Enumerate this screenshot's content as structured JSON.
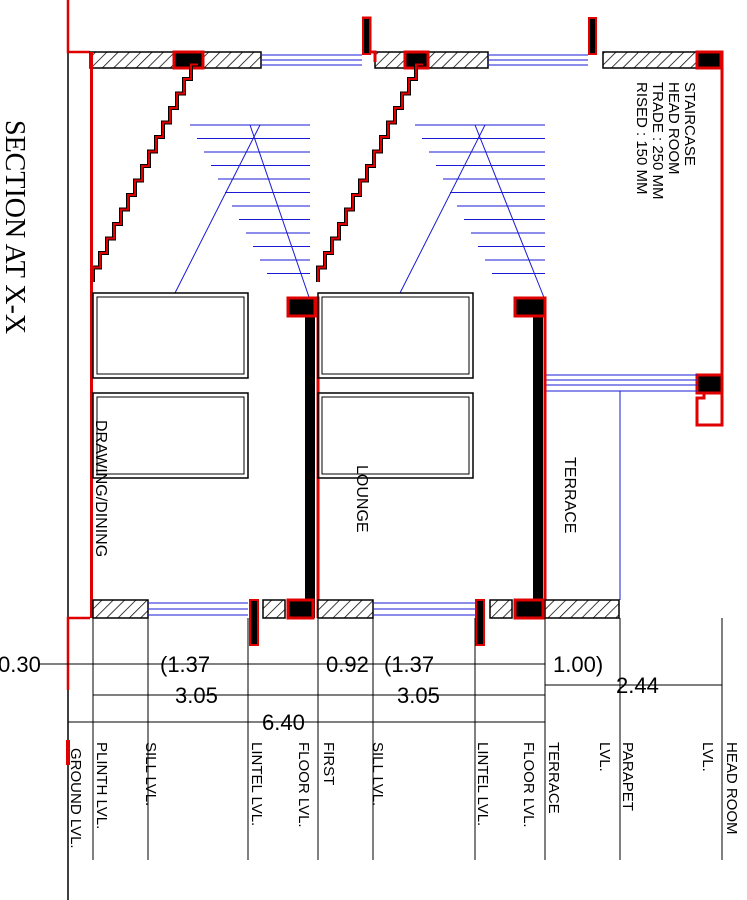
{
  "title": "SECTION AT X-X",
  "rooms": {
    "drawing": "DRAWING/DINING",
    "lounge": "LOUNGE",
    "terrace": "TERRACE"
  },
  "staircase_note": [
    "STAIRCASE",
    "HEAD ROOM",
    "TRADE : 250 MM",
    "RISED : 150 MM"
  ],
  "dimensions": {
    "d030": "0.30",
    "d137a": "(1.37",
    "d092": "0.92",
    "d137b": "(1.37",
    "d100": "1.00)",
    "d305a": "3.05",
    "d305b": "3.05",
    "d244": "2.44",
    "d640": "6.40"
  },
  "levels": [
    "GROUND LVL.",
    "PLINTH LVL.",
    "SILL LVL.",
    "LINTEL LVL.",
    "FIRST",
    "FLOOR LVL.",
    "SILL LVL.",
    "LINTEL LVL.",
    "FLOOR LVL.",
    "TERRACE",
    "PARAPET",
    "LVL.",
    "HEAD ROOM",
    "LVL."
  ],
  "colors": {
    "wall": "#e00000",
    "stair_lines": "#1a1ad6",
    "ink": "#000000"
  }
}
